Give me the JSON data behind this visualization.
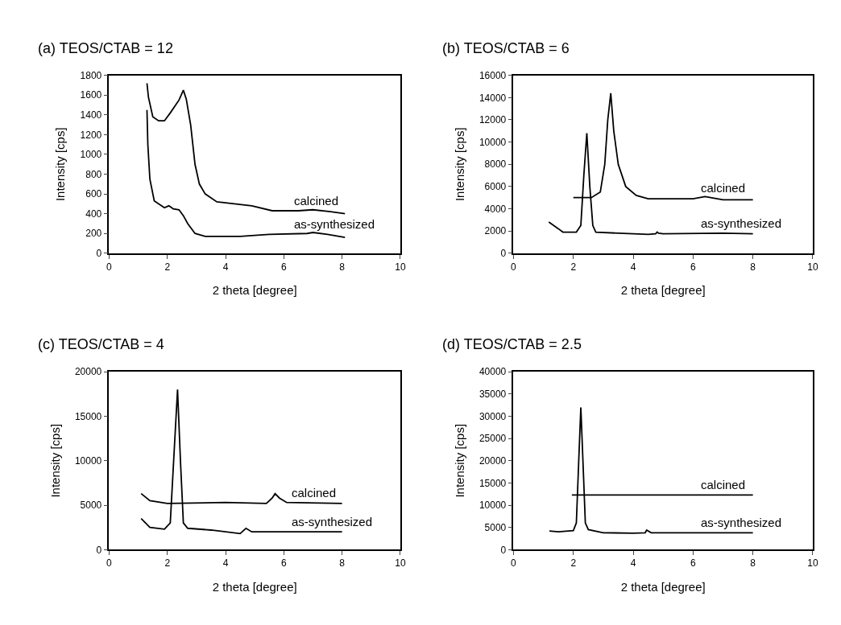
{
  "chart_data": [
    {
      "type": "line",
      "title": "(a) TEOS/CTAB = 12",
      "xlabel": "2 theta [degree]",
      "ylabel": "Intensity [cps]",
      "xlim": [
        0,
        10
      ],
      "xticks": [
        0,
        2,
        4,
        6,
        8,
        10
      ],
      "ylim": [
        0,
        1800
      ],
      "yticks": [
        0,
        200,
        400,
        600,
        800,
        1000,
        1200,
        1400,
        1600,
        1800
      ],
      "legend": false,
      "marker": "none",
      "line_style": "solid",
      "series": [
        {
          "name": "calcined",
          "color": "#000000",
          "x": [
            1.3,
            1.35,
            1.5,
            1.7,
            1.9,
            2.1,
            2.4,
            2.55,
            2.65,
            2.8,
            2.95,
            3.1,
            3.3,
            3.7,
            4.3,
            4.9,
            5.6,
            6.5,
            7.0,
            7.6,
            8.1
          ],
          "values": [
            1720,
            1580,
            1380,
            1340,
            1340,
            1420,
            1550,
            1650,
            1560,
            1300,
            900,
            700,
            600,
            520,
            500,
            480,
            430,
            430,
            440,
            420,
            400
          ]
        },
        {
          "name": "as-synthesized",
          "color": "#000000",
          "x": [
            1.3,
            1.33,
            1.4,
            1.55,
            1.9,
            2.05,
            2.15,
            2.2,
            2.4,
            2.55,
            2.7,
            2.95,
            3.3,
            4.5,
            5.5,
            6.8,
            7.0,
            7.5,
            8.1
          ],
          "values": [
            1450,
            1100,
            750,
            530,
            460,
            480,
            460,
            450,
            440,
            380,
            300,
            200,
            170,
            170,
            190,
            200,
            210,
            190,
            160
          ]
        }
      ]
    },
    {
      "type": "line",
      "title": "(b) TEOS/CTAB = 6",
      "xlabel": "2 theta [degree]",
      "ylabel": "Intensity [cps]",
      "xlim": [
        0,
        10
      ],
      "xticks": [
        0,
        2,
        4,
        6,
        8,
        10
      ],
      "ylim": [
        0,
        16000
      ],
      "yticks": [
        0,
        2000,
        4000,
        6000,
        8000,
        10000,
        12000,
        14000,
        16000
      ],
      "legend": false,
      "marker": "none",
      "line_style": "solid",
      "series": [
        {
          "name": "calcined",
          "color": "#000000",
          "x": [
            2.0,
            2.6,
            2.9,
            3.05,
            3.15,
            3.25,
            3.35,
            3.5,
            3.75,
            4.1,
            4.5,
            6.0,
            6.4,
            7.0,
            8.0
          ],
          "values": [
            5000,
            5000,
            5500,
            8000,
            12000,
            14400,
            11000,
            8000,
            6000,
            5200,
            4900,
            4900,
            5100,
            4800,
            4800
          ]
        },
        {
          "name": "as-synthesized",
          "color": "#000000",
          "x": [
            1.18,
            1.5,
            1.65,
            2.1,
            2.25,
            2.35,
            2.45,
            2.55,
            2.65,
            2.75,
            3.5,
            4.5,
            4.75,
            4.8,
            4.85,
            5.0,
            7.0,
            8.0
          ],
          "values": [
            2800,
            2200,
            1900,
            1900,
            2500,
            7000,
            10800,
            6000,
            2500,
            1900,
            1800,
            1700,
            1750,
            1900,
            1800,
            1750,
            1800,
            1750
          ]
        }
      ]
    },
    {
      "type": "line",
      "title": "(c) TEOS/CTAB = 4",
      "xlabel": "2 theta [degree]",
      "ylabel": "Intensity [cps]",
      "xlim": [
        0,
        10
      ],
      "xticks": [
        0,
        2,
        4,
        6,
        8,
        10
      ],
      "ylim": [
        0,
        20000
      ],
      "yticks": [
        0,
        5000,
        10000,
        15000,
        20000
      ],
      "legend": false,
      "marker": "none",
      "line_style": "solid",
      "series": [
        {
          "name": "calcined",
          "color": "#000000",
          "x": [
            1.1,
            1.4,
            2.0,
            4.0,
            5.4,
            5.6,
            5.7,
            5.85,
            6.1,
            8.0
          ],
          "values": [
            6300,
            5500,
            5200,
            5300,
            5200,
            5800,
            6300,
            5800,
            5300,
            5200
          ]
        },
        {
          "name": "as-synthesized",
          "color": "#000000",
          "x": [
            1.1,
            1.4,
            1.9,
            2.1,
            2.25,
            2.35,
            2.45,
            2.55,
            2.7,
            3.5,
            4.5,
            4.7,
            4.9,
            8.0
          ],
          "values": [
            3500,
            2500,
            2300,
            3000,
            12000,
            18000,
            10000,
            3000,
            2400,
            2200,
            1800,
            2400,
            2000,
            2000
          ]
        }
      ]
    },
    {
      "type": "line",
      "title": "(d) TEOS/CTAB = 2.5",
      "xlabel": "2 theta [degree]",
      "ylabel": "Intensity [cps]",
      "xlim": [
        0,
        10
      ],
      "xticks": [
        0,
        2,
        4,
        6,
        8,
        10
      ],
      "ylim": [
        0,
        40000
      ],
      "yticks": [
        0,
        5000,
        10000,
        15000,
        20000,
        25000,
        30000,
        35000,
        40000
      ],
      "legend": false,
      "marker": "none",
      "line_style": "solid",
      "series": [
        {
          "name": "calcined",
          "color": "#000000",
          "x": [
            1.95,
            8.0
          ],
          "values": [
            12300,
            12300
          ]
        },
        {
          "name": "as-synthesized",
          "color": "#000000",
          "x": [
            1.2,
            1.5,
            2.0,
            2.1,
            2.18,
            2.25,
            2.32,
            2.4,
            2.5,
            3.0,
            4.0,
            4.4,
            4.45,
            4.6,
            8.0
          ],
          "values": [
            4200,
            4000,
            4300,
            6000,
            20000,
            32000,
            20000,
            6000,
            4500,
            3800,
            3700,
            3800,
            4400,
            3800,
            3800
          ]
        }
      ]
    }
  ]
}
